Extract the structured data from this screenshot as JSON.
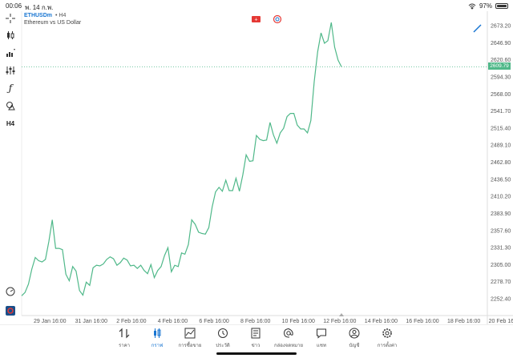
{
  "status": {
    "time": "00:06",
    "date": "พ. 14 ก.พ.",
    "battery": "97%",
    "battery_level": 0.97
  },
  "chart": {
    "symbol": "ETHUSDm",
    "timeframe": "H4",
    "description": "Ethereum vs US Dollar",
    "current_price": "2609.79",
    "line_color": "#4fb889",
    "price_line_color": "#4fb889"
  },
  "chart_data": {
    "type": "line",
    "y_ticks": [
      "2673.20",
      "2646.90",
      "2620.60",
      "2594.30",
      "2568.00",
      "2541.70",
      "2515.40",
      "2489.10",
      "2462.80",
      "2436.50",
      "2410.20",
      "2383.90",
      "2357.60",
      "2331.30",
      "2305.00",
      "2278.70",
      "2252.40"
    ],
    "y_tick_values": [
      2673.2,
      2646.9,
      2620.6,
      2594.3,
      2568.0,
      2541.7,
      2515.4,
      2489.1,
      2462.8,
      2436.5,
      2410.2,
      2383.9,
      2357.6,
      2331.3,
      2305.0,
      2278.7,
      2252.4
    ],
    "x_ticks": [
      "29 Jan 16:00",
      "31 Jan 16:00",
      "2 Feb 16:00",
      "4 Feb 16:00",
      "6 Feb 16:00",
      "8 Feb 16:00",
      "10 Feb 16:00",
      "12 Feb 16:00",
      "14 Feb 16:00",
      "16 Feb 16:00",
      "18 Feb 16:00",
      "20 Feb 16"
    ],
    "ylim": [
      2245,
      2685
    ],
    "values": [
      2257,
      2262,
      2275,
      2298,
      2316,
      2311,
      2309,
      2313,
      2341,
      2374,
      2330,
      2330,
      2328,
      2290,
      2280,
      2302,
      2295,
      2265,
      2258,
      2278,
      2273,
      2300,
      2304,
      2303,
      2306,
      2313,
      2317,
      2314,
      2304,
      2308,
      2315,
      2312,
      2303,
      2304,
      2299,
      2304,
      2296,
      2291,
      2305,
      2285,
      2296,
      2302,
      2319,
      2331,
      2294,
      2304,
      2302,
      2323,
      2321,
      2336,
      2374,
      2367,
      2355,
      2353,
      2352,
      2362,
      2394,
      2417,
      2424,
      2418,
      2435,
      2419,
      2419,
      2438,
      2418,
      2443,
      2474,
      2464,
      2465,
      2504,
      2498,
      2496,
      2497,
      2524,
      2505,
      2492,
      2508,
      2515,
      2533,
      2538,
      2538,
      2520,
      2514,
      2514,
      2508,
      2527,
      2587,
      2633,
      2662,
      2646,
      2650,
      2678,
      2640,
      2620,
      2609.79
    ]
  },
  "toolbar": {
    "icons": [
      "crosshair-icon",
      "candlestick-icon",
      "indicators-icon",
      "adjust-icon",
      "function-icon",
      "objects-icon",
      "timeframe-icon"
    ],
    "timeframe_label": "H4"
  },
  "bottom_nav": {
    "items": [
      {
        "label": "ราคา",
        "icon": "quotes-icon",
        "active": false
      },
      {
        "label": "กราฟ",
        "icon": "chart-icon",
        "active": true
      },
      {
        "label": "การซื้อขาย",
        "icon": "trade-icon",
        "active": false
      },
      {
        "label": "ประวัติ",
        "icon": "history-icon",
        "active": false
      },
      {
        "label": "ข่าว",
        "icon": "news-icon",
        "active": false
      },
      {
        "label": "กล่องจดหมาย",
        "icon": "mail-icon",
        "active": false
      },
      {
        "label": "แชท",
        "icon": "chat-icon",
        "active": false
      },
      {
        "label": "บัญชี",
        "icon": "account-icon",
        "active": false
      },
      {
        "label": "การตั้งค่า",
        "icon": "settings-icon",
        "active": false
      }
    ]
  }
}
